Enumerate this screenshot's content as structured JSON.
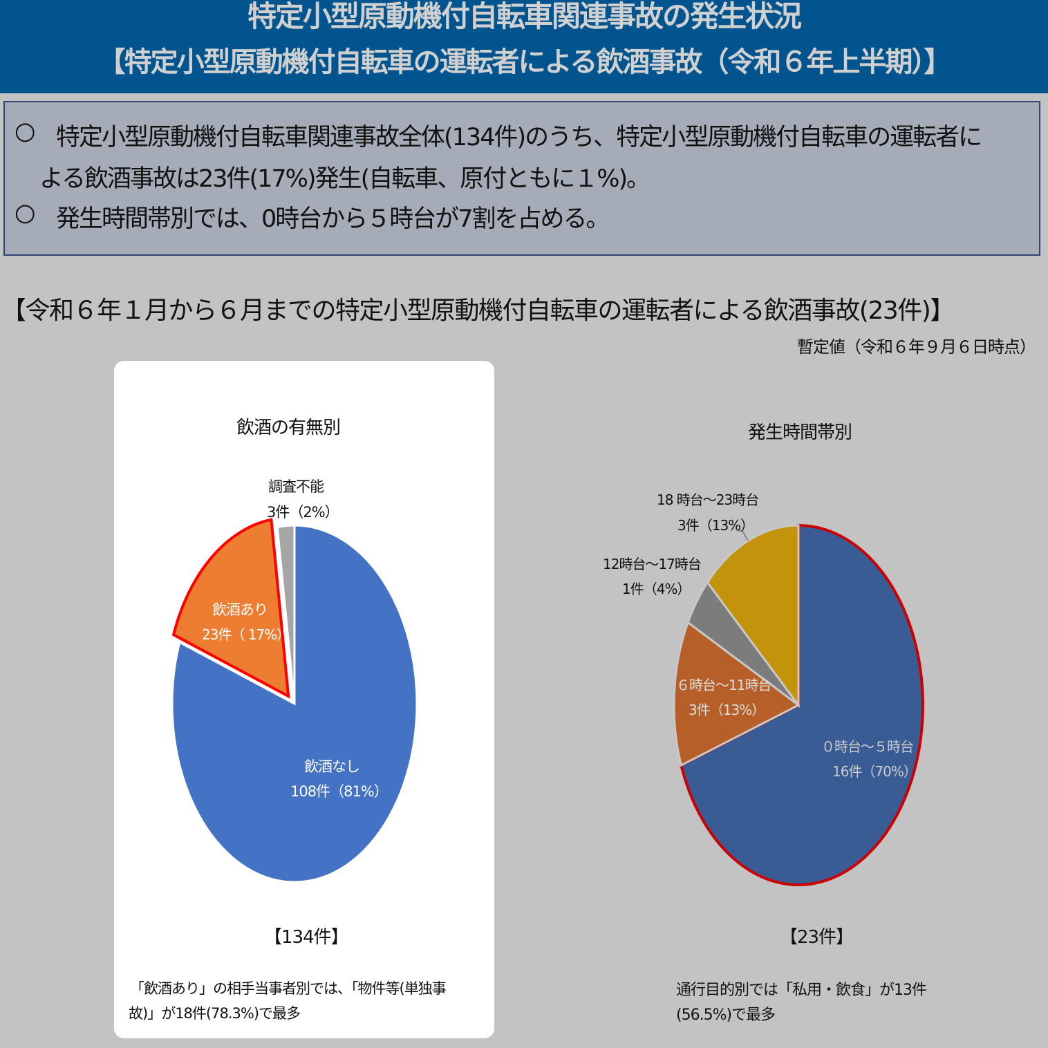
{
  "header": {
    "title": "特定小型原動機付自転車関連事故の発生状況",
    "subtitle": "【特定小型原動機付自転車の運転者による飲酒事故（令和６年上半期）】"
  },
  "summary": {
    "bullet": "○",
    "line1": "特定小型原動機付自転車関連事故全体(134件)のうち、特定小型原動機付自転車の運転者に",
    "line2": "よる飲酒事故は23件(17%)発生(自転車、原付ともに１%)。",
    "line3": "発生時間帯別では、0時台から５時台が7割を占める。"
  },
  "section_title": "【令和６年１月から６月までの特定小型原動機付自転車の運転者による飲酒事故(23件)】",
  "note": "暫定値（令和６年９月６日時点）",
  "chart_data": [
    {
      "type": "pie",
      "title": "飲酒の有無別",
      "total_label": "【134件】",
      "slices": [
        {
          "name": "飲酒なし",
          "value": 108,
          "label": "108件（81%）",
          "color": "#4472c4"
        },
        {
          "name": "飲酒あり",
          "value": 23,
          "label": "23件（ 17%）",
          "color": "#ed7d31",
          "highlight": "#ff0000"
        },
        {
          "name": "調査不能",
          "value": 3,
          "label": "3件（2%）",
          "color": "#a5a5a5"
        }
      ],
      "caption": [
        "「飲酒あり」の相手当事者別では、「物件等(単独事",
        "故)」が18件(78.3%)で最多"
      ]
    },
    {
      "type": "pie",
      "title": "発生時間帯別",
      "total_label": "【23件】",
      "slices": [
        {
          "name": "０時台～５時台",
          "value": 16,
          "label": "16件（70%）",
          "color": "#3a5c95",
          "highlight": "#cc0000"
        },
        {
          "name": "６時台～11時台",
          "value": 3,
          "label": "3件（13%）",
          "color": "#b65f28"
        },
        {
          "name": "12時台～17時台",
          "value": 1,
          "label": "1件（4%）",
          "color": "#7c7c7c"
        },
        {
          "name": "18 時台～23時台",
          "value": 3,
          "label": "3件（13%）",
          "color": "#c4930c"
        }
      ],
      "caption": [
        "通行目的別では「私用・飲食」が13件",
        "(56.5%)で最多"
      ]
    }
  ]
}
